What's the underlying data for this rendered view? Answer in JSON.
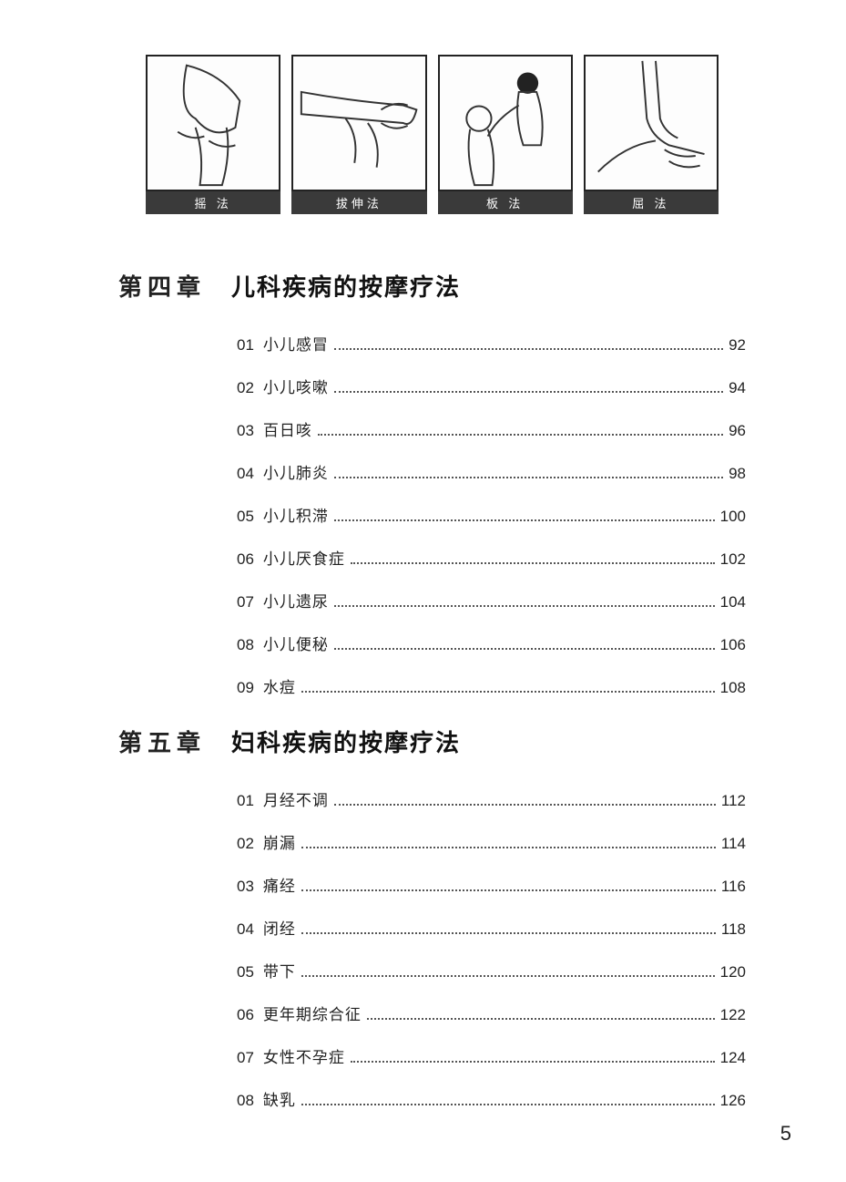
{
  "illustrations": [
    {
      "caption": "摇 法"
    },
    {
      "caption": "拔伸法"
    },
    {
      "caption": "板 法"
    },
    {
      "caption": "屈 法"
    }
  ],
  "chapters": [
    {
      "label": "第四章",
      "title": "儿科疾病的按摩疗法",
      "entries": [
        {
          "num": "01",
          "name": "小儿感冒",
          "page": "92"
        },
        {
          "num": "02",
          "name": "小儿咳嗽",
          "page": "94"
        },
        {
          "num": "03",
          "name": "百日咳",
          "page": "96"
        },
        {
          "num": "04",
          "name": "小儿肺炎",
          "page": "98"
        },
        {
          "num": "05",
          "name": "小儿积滞",
          "page": "100"
        },
        {
          "num": "06",
          "name": "小儿厌食症",
          "page": "102"
        },
        {
          "num": "07",
          "name": "小儿遗尿",
          "page": "104"
        },
        {
          "num": "08",
          "name": "小儿便秘",
          "page": "106"
        },
        {
          "num": "09",
          "name": "水痘",
          "page": "108"
        }
      ]
    },
    {
      "label": "第五章",
      "title": "妇科疾病的按摩疗法",
      "entries": [
        {
          "num": "01",
          "name": "月经不调",
          "page": "112"
        },
        {
          "num": "02",
          "name": "崩漏",
          "page": "114"
        },
        {
          "num": "03",
          "name": "痛经",
          "page": "116"
        },
        {
          "num": "04",
          "name": "闭经",
          "page": "118"
        },
        {
          "num": "05",
          "name": "带下",
          "page": "120"
        },
        {
          "num": "06",
          "name": "更年期综合征",
          "page": "122"
        },
        {
          "num": "07",
          "name": "女性不孕症",
          "page": "124"
        },
        {
          "num": "08",
          "name": "缺乳",
          "page": "126"
        }
      ]
    }
  ],
  "pageNumber": "5",
  "colors": {
    "text": "#222222",
    "captionBg": "#3a3a3a",
    "captionText": "#ffffff",
    "border": "#222222",
    "dots": "#555555",
    "background": "#ffffff"
  }
}
